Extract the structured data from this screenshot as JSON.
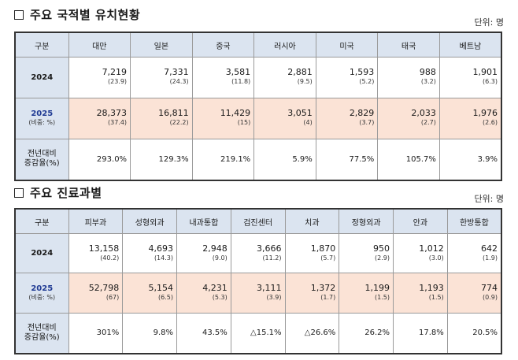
{
  "section1": {
    "title": "주요 국적별 유치현황",
    "unit": "단위: 명",
    "header": [
      "구분",
      "대만",
      "일본",
      "중국",
      "러시아",
      "미국",
      "태국",
      "베트남"
    ],
    "row2024": {
      "label": "2024",
      "cells": [
        {
          "v": "7,219",
          "p": "(23.9)"
        },
        {
          "v": "7,331",
          "p": "(24.3)"
        },
        {
          "v": "3,581",
          "p": "(11.8)"
        },
        {
          "v": "2,881",
          "p": "(9.5)"
        },
        {
          "v": "1,593",
          "p": "(5.2)"
        },
        {
          "v": "988",
          "p": "(3.2)"
        },
        {
          "v": "1,901",
          "p": "(6.3)"
        }
      ]
    },
    "row2025": {
      "label": "2025",
      "sublabel": "(비중: %)",
      "cells": [
        {
          "v": "28,373",
          "p": "(37.4)"
        },
        {
          "v": "16,811",
          "p": "(22.2)"
        },
        {
          "v": "11,429",
          "p": "(15)"
        },
        {
          "v": "3,051",
          "p": "(4)"
        },
        {
          "v": "2,829",
          "p": "(3.7)"
        },
        {
          "v": "2,033",
          "p": "(2.7)"
        },
        {
          "v": "1,976",
          "p": "(2.6)"
        }
      ]
    },
    "rowChange": {
      "label1": "전년대비",
      "label2": "증감율(%)",
      "cells": [
        "293.0%",
        "129.3%",
        "219.1%",
        "5.9%",
        "77.5%",
        "105.7%",
        "3.9%"
      ]
    }
  },
  "section2": {
    "title": "주요 진료과별",
    "unit": "단위: 명",
    "header": [
      "구분",
      "피부과",
      "성형외과",
      "내과통합",
      "검진센터",
      "치과",
      "정형외과",
      "안과",
      "한방통합"
    ],
    "row2024": {
      "label": "2024",
      "cells": [
        {
          "v": "13,158",
          "p": "(40.2)"
        },
        {
          "v": "4,693",
          "p": "(14.3)"
        },
        {
          "v": "2,948",
          "p": "(9.0)"
        },
        {
          "v": "3,666",
          "p": "(11.2)"
        },
        {
          "v": "1,870",
          "p": "(5.7)"
        },
        {
          "v": "950",
          "p": "(2.9)"
        },
        {
          "v": "1,012",
          "p": "(3.0)"
        },
        {
          "v": "642",
          "p": "(1.9)"
        }
      ]
    },
    "row2025": {
      "label": "2025",
      "sublabel": "(비중: %)",
      "cells": [
        {
          "v": "52,798",
          "p": "(67)"
        },
        {
          "v": "5,154",
          "p": "(6.5)"
        },
        {
          "v": "4,231",
          "p": "(5.3)"
        },
        {
          "v": "3,111",
          "p": "(3.9)"
        },
        {
          "v": "1,372",
          "p": "(1.7)"
        },
        {
          "v": "1,199",
          "p": "(1.5)"
        },
        {
          "v": "1,193",
          "p": "(1.5)"
        },
        {
          "v": "774",
          "p": "(0.9)"
        }
      ]
    },
    "rowChange": {
      "label1": "전년대비",
      "label2": "증감율(%)",
      "cells": [
        "301%",
        "9.8%",
        "43.5%",
        "△15.1%",
        "△26.6%",
        "26.2%",
        "17.8%",
        "20.5%"
      ]
    }
  }
}
